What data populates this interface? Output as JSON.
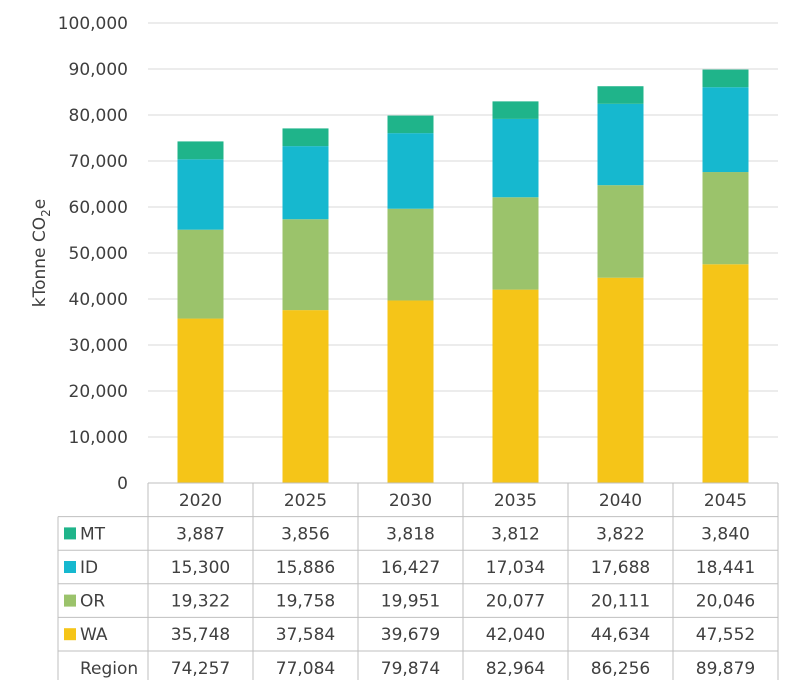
{
  "chart_data": {
    "type": "bar",
    "stacked": true,
    "ylabel": "kTonne CO",
    "ylabel_sub": "2",
    "ylabel_tail": "e",
    "ylim": [
      0,
      100000
    ],
    "yticks": [
      0,
      10000,
      20000,
      30000,
      40000,
      50000,
      60000,
      70000,
      80000,
      90000,
      100000
    ],
    "ytick_labels": [
      "0",
      "10,000",
      "20,000",
      "30,000",
      "40,000",
      "50,000",
      "60,000",
      "70,000",
      "80,000",
      "90,000",
      "100,000"
    ],
    "grid": true,
    "categories": [
      "2020",
      "2025",
      "2030",
      "2035",
      "2040",
      "2045"
    ],
    "series": [
      {
        "name": "WA",
        "color": "#f5c518",
        "values": [
          35748,
          37584,
          39679,
          42040,
          44634,
          47552
        ],
        "labels": [
          "35,748",
          "37,584",
          "39,679",
          "42,040",
          "44,634",
          "47,552"
        ]
      },
      {
        "name": "OR",
        "color": "#9bc36b",
        "values": [
          19322,
          19758,
          19951,
          20077,
          20111,
          20046
        ],
        "labels": [
          "19,322",
          "19,758",
          "19,951",
          "20,077",
          "20,111",
          "20,046"
        ]
      },
      {
        "name": "ID",
        "color": "#16b8cf",
        "values": [
          15300,
          15886,
          16427,
          17034,
          17688,
          18441
        ],
        "labels": [
          "15,300",
          "15,886",
          "16,427",
          "17,034",
          "17,688",
          "18,441"
        ]
      },
      {
        "name": "MT",
        "color": "#1fb48a",
        "values": [
          3887,
          3856,
          3818,
          3812,
          3822,
          3840
        ],
        "labels": [
          "3,887",
          "3,856",
          "3,818",
          "3,812",
          "3,822",
          "3,840"
        ]
      }
    ],
    "table_row_order": [
      "MT",
      "ID",
      "OR",
      "WA"
    ],
    "total_row": {
      "name": "Region",
      "values": [
        74257,
        77084,
        79874,
        82964,
        86256,
        89879
      ],
      "labels": [
        "74,257",
        "77,084",
        "79,874",
        "82,964",
        "86,256",
        "89,879"
      ]
    }
  }
}
